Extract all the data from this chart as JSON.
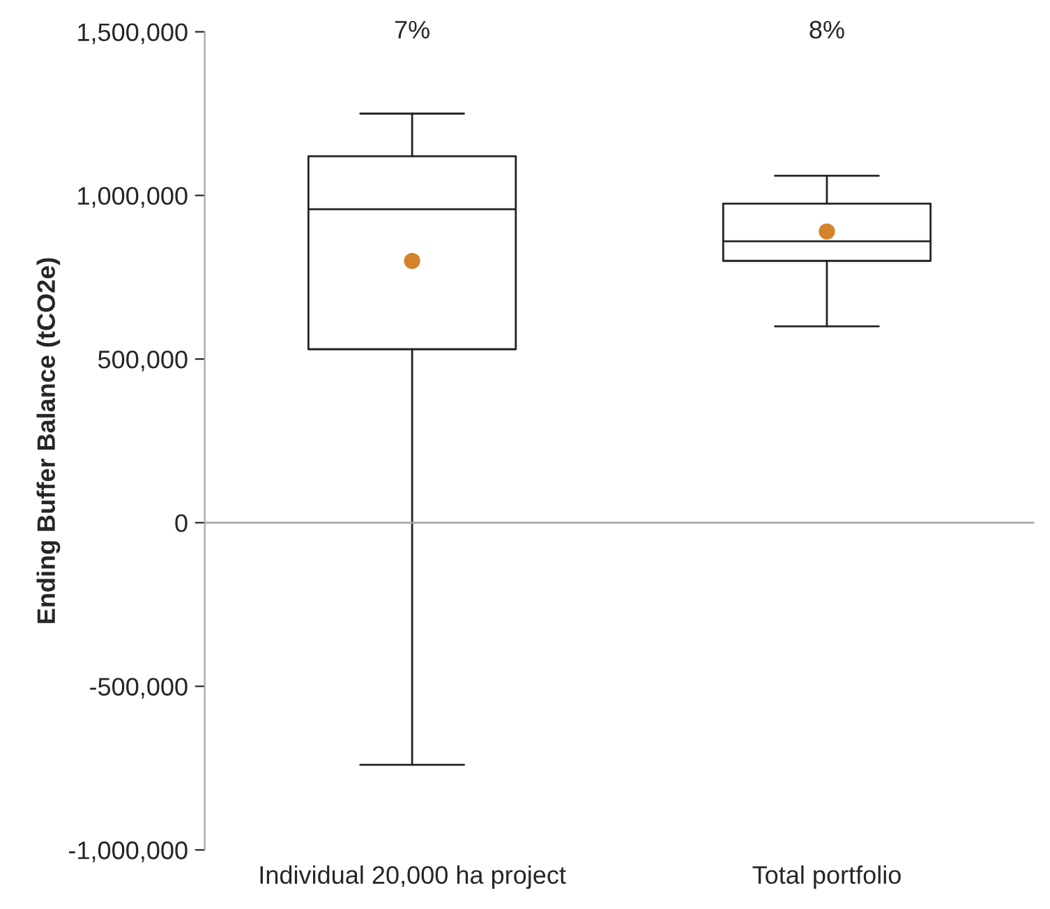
{
  "chart_data": {
    "type": "box",
    "categories": [
      "Individual 20,000 ha project",
      "Total portfolio"
    ],
    "boxes": [
      {
        "low": -740000,
        "q1": 530000,
        "median": 958000,
        "q3": 1120000,
        "high": 1250000
      },
      {
        "low": 600000,
        "q1": 800000,
        "median": 860000,
        "q3": 975000,
        "high": 1060000
      }
    ],
    "series": [
      {
        "type": "scatter",
        "x": [
          "Individual 20,000 ha project",
          "Total portfolio"
        ],
        "values": [
          800000,
          890000
        ],
        "color": "#d4832a"
      }
    ],
    "ylabel": "Ending Buffer Balance (tCO2e)",
    "ylim": [
      -1000000,
      1500000
    ],
    "yticks": [
      {
        "value": -1000000,
        "label": "-1,000,000"
      },
      {
        "value": -500000,
        "label": "-500,000"
      },
      0,
      {
        "value": 500000,
        "label": "500,000"
      },
      {
        "value": 1000000,
        "label": "1,000,000"
      },
      {
        "value": 1500000,
        "label": "1,500,000"
      }
    ],
    "ref_lines": [
      {
        "axis": "y",
        "value": 0,
        "color": "#a6a6a6"
      }
    ],
    "annotations": [
      "7%",
      "8%"
    ],
    "grid": false,
    "legend": false
  }
}
